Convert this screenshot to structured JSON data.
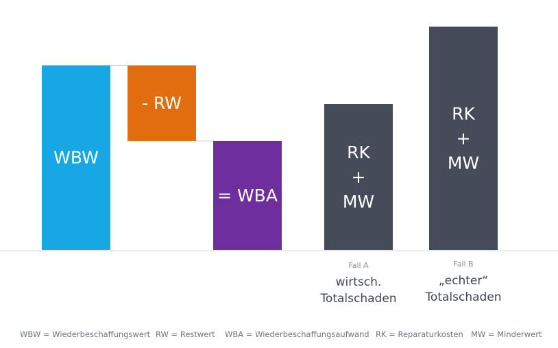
{
  "chart_data": {
    "type": "bar",
    "subtype": "waterfall-and-comparison",
    "categories": [
      "WBW",
      "- RW",
      "= WBA",
      "Fall A",
      "Fall B"
    ],
    "bars": [
      {
        "label_lines": [
          "WBW"
        ],
        "start": 0,
        "end": 100,
        "color": "#16a7e4"
      },
      {
        "label_lines": [
          "- RW"
        ],
        "start": 59,
        "end": 100,
        "color": "#e26d0e"
      },
      {
        "label_lines": [
          "= WBA"
        ],
        "start": 0,
        "end": 59,
        "color": "#6e2e9e"
      },
      {
        "label_lines": [
          "RK",
          "+",
          "MW"
        ],
        "start": 0,
        "end": 79,
        "color": "#454b59"
      },
      {
        "label_lines": [
          "RK",
          "+",
          "MW"
        ],
        "start": 0,
        "end": 121,
        "color": "#454b59"
      }
    ],
    "ylim": [
      0,
      125
    ],
    "grid": false,
    "baseline_color": "#d9d9d9",
    "connector_color": "#cccccc",
    "cases": [
      {
        "small": "Fall A",
        "large_lines": [
          "wirtsch.",
          "Totalschaden"
        ]
      },
      {
        "small": "Fall B",
        "large_lines": [
          "„echter“",
          "Totalschaden"
        ]
      }
    ],
    "legend": [
      "WBW = Wiederbeschaffungswert",
      "RW = Restwert",
      "WBA = Wiederbeschaffungsaufwand",
      "RK = Reparaturkosten",
      "MW = Minderwert"
    ]
  }
}
